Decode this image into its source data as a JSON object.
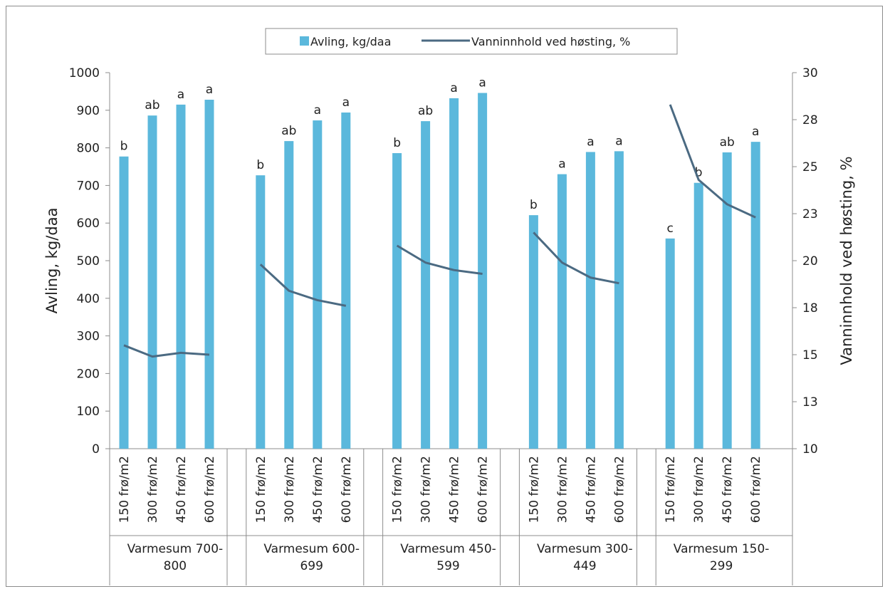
{
  "chart_data": {
    "type": "bar+line",
    "legend": {
      "position": "top",
      "bar_label": "Avling, kg/daa",
      "line_label": "Vanninnhold ved høsting, %"
    },
    "y_left": {
      "label": "Avling, kg/daa",
      "range": [
        0,
        1000
      ],
      "ticks": [
        "0",
        "100",
        "200",
        "300",
        "400",
        "500",
        "600",
        "700",
        "800",
        "900",
        "1000"
      ]
    },
    "y_right": {
      "label": "Vanninnhold ved høsting, %",
      "range": [
        10,
        30
      ],
      "ticks": [
        "10",
        "13",
        "15",
        "18",
        "20",
        "23",
        "25",
        "28",
        "30"
      ]
    },
    "grid": false,
    "colors": {
      "bar": "#5bb8dc",
      "line": "#4b6a82",
      "axis": "#8c8c8c"
    },
    "groups": [
      {
        "label": "Varmesum 700-800",
        "label_lines": [
          "Varmesum 700-",
          "800"
        ],
        "categories": [
          "150 frø/m2",
          "300 frø/m2",
          "450 frø/m2",
          "600 frø/m2"
        ],
        "avling": [
          777,
          886,
          915,
          928
        ],
        "letters": [
          "b",
          "ab",
          "a",
          "a"
        ],
        "vanninnhold": [
          15.5,
          14.9,
          15.1,
          15.0
        ]
      },
      {
        "label": "Varmesum 600-699",
        "label_lines": [
          "Varmesum 600-",
          "699"
        ],
        "categories": [
          "150 frø/m2",
          "300 frø/m2",
          "450 frø/m2",
          "600 frø/m2"
        ],
        "avling": [
          727,
          818,
          873,
          894
        ],
        "letters": [
          "b",
          "ab",
          "a",
          "a"
        ],
        "vanninnhold": [
          19.8,
          18.4,
          17.9,
          17.6
        ]
      },
      {
        "label": "Varmesum 450-599",
        "label_lines": [
          "Varmesum 450-",
          "599"
        ],
        "categories": [
          "150 frø/m2",
          "300 frø/m2",
          "450 frø/m2",
          "600 frø/m2"
        ],
        "avling": [
          786,
          871,
          932,
          946
        ],
        "letters": [
          "b",
          "ab",
          "a",
          "a"
        ],
        "vanninnhold": [
          20.8,
          19.9,
          19.5,
          19.3
        ]
      },
      {
        "label": "Varmesum 300-449",
        "label_lines": [
          "Varmesum 300-",
          "449"
        ],
        "categories": [
          "150 frø/m2",
          "300 frø/m2",
          "450 frø/m2",
          "600 frø/m2"
        ],
        "avling": [
          621,
          730,
          789,
          791
        ],
        "letters": [
          "b",
          "a",
          "a",
          "a"
        ],
        "vanninnhold": [
          21.5,
          19.9,
          19.1,
          18.8
        ]
      },
      {
        "label": "Varmesum 150-299",
        "label_lines": [
          "Varmesum 150-",
          "299"
        ],
        "categories": [
          "150 frø/m2",
          "300 frø/m2",
          "450 frø/m2",
          "600 frø/m2"
        ],
        "avling": [
          559,
          707,
          788,
          816
        ],
        "letters": [
          "c",
          "b",
          "ab",
          "a"
        ],
        "vanninnhold": [
          28.3,
          24.3,
          23.0,
          22.3
        ]
      }
    ]
  }
}
